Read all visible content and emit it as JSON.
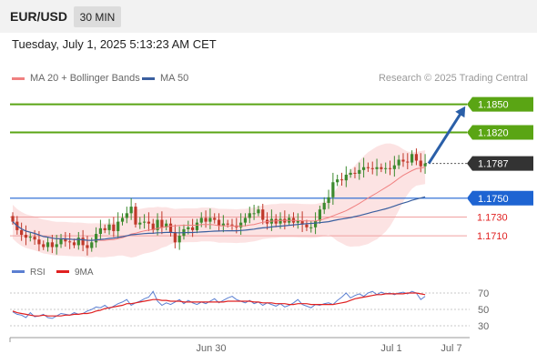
{
  "header": {
    "symbol": "EUR/USD",
    "timeframe": "30 MIN"
  },
  "datetime": "Tuesday, July 1, 2025 5:13:23 AM CET",
  "legend": {
    "ma20": {
      "label": "MA 20 + Bollinger Bands",
      "color": "#f08080"
    },
    "ma50": {
      "label": "MA 50",
      "color": "#3a5f9f"
    }
  },
  "credit": "Research © 2025 Trading Central",
  "rsi_legend": {
    "rsi": {
      "label": "RSI",
      "color": "#5b7fd1"
    },
    "ma9": {
      "label": "9MA",
      "color": "#e02020"
    }
  },
  "chart_data": {
    "type": "candlestick",
    "instrument": "EUR/USD",
    "timeframe": "30 MIN",
    "price_range": [
      1.1682,
      1.1868
    ],
    "levels": [
      {
        "value": 1.185,
        "label": "1.1850",
        "color": "#5aa514",
        "style": "target"
      },
      {
        "value": 1.182,
        "label": "1.1820",
        "color": "#5aa514",
        "style": "target"
      },
      {
        "value": 1.1787,
        "label": "1.1787",
        "color": "#333333",
        "style": "last-price"
      },
      {
        "value": 1.175,
        "label": "1.1750",
        "color": "#1e64d2",
        "style": "pivot"
      },
      {
        "value": 1.173,
        "label": "1.1730",
        "color": "#e02020",
        "style": "support"
      },
      {
        "value": 1.171,
        "label": "1.1710",
        "color": "#e02020",
        "style": "support"
      }
    ],
    "projection": {
      "from": 1.1787,
      "to": 1.1843,
      "direction": "up",
      "color": "#2a5fa8"
    },
    "x_ticks": [
      "Jun 30",
      "Jul 1",
      "Jul 7"
    ],
    "candles_close": [
      1.1725,
      1.1716,
      1.1711,
      1.1708,
      1.1709,
      1.1706,
      1.1701,
      1.1698,
      1.1703,
      1.1698,
      1.1701,
      1.1707,
      1.1704,
      1.1703,
      1.17,
      1.1708,
      1.17,
      1.1697,
      1.1703,
      1.1712,
      1.1718,
      1.1716,
      1.1722,
      1.1715,
      1.1725,
      1.1729,
      1.1734,
      1.1741,
      1.1722,
      1.1724,
      1.1725,
      1.1723,
      1.1716,
      1.1727,
      1.1719,
      1.1723,
      1.1714,
      1.1703,
      1.171,
      1.1717,
      1.1719,
      1.1716,
      1.1724,
      1.1729,
      1.1725,
      1.1729,
      1.1727,
      1.1721,
      1.1723,
      1.1722,
      1.1721,
      1.1719,
      1.1724,
      1.1729,
      1.1734,
      1.1734,
      1.1738,
      1.1727,
      1.1723,
      1.1728,
      1.1723,
      1.1728,
      1.1724,
      1.1729,
      1.1724,
      1.1726,
      1.1722,
      1.1719,
      1.1719,
      1.1726,
      1.1738,
      1.1745,
      1.1751,
      1.1767,
      1.177,
      1.1769,
      1.1775,
      1.1777,
      1.1776,
      1.178,
      1.1783,
      1.1782,
      1.1781,
      1.1783,
      1.1781,
      1.1782,
      1.1781,
      1.1785,
      1.1791,
      1.1789,
      1.1788,
      1.1797,
      1.179,
      1.1784,
      1.1787
    ],
    "rsi": {
      "range": [
        20,
        80
      ],
      "ticks": [
        70,
        50,
        30
      ],
      "rsi_values": [
        47,
        44,
        43,
        40,
        46,
        41,
        42,
        44,
        40,
        39,
        42,
        45,
        44,
        43,
        46,
        44,
        45,
        48,
        50,
        53,
        52,
        55,
        51,
        54,
        57,
        59,
        62,
        55,
        58,
        60,
        63,
        65,
        72,
        60,
        55,
        58,
        56,
        59,
        62,
        57,
        61,
        58,
        56,
        59,
        57,
        60,
        63,
        58,
        61,
        64,
        66,
        62,
        60,
        58,
        61,
        57,
        59,
        55,
        58,
        56,
        54,
        57,
        53,
        55,
        58,
        62,
        56,
        54,
        52,
        56,
        55,
        57,
        58,
        56,
        61,
        65,
        70,
        64,
        67,
        69,
        66,
        70,
        72,
        68,
        71,
        69,
        70,
        68,
        70,
        71,
        69,
        72,
        70,
        62,
        66
      ],
      "ma9_values": [
        48,
        46,
        45,
        44,
        43,
        42,
        42,
        43,
        42,
        42,
        42,
        42,
        43,
        43,
        44,
        44,
        45,
        45,
        46,
        48,
        49,
        51,
        52,
        53,
        54,
        55,
        57,
        57,
        58,
        59,
        60,
        61,
        62,
        62,
        61,
        61,
        60,
        60,
        60,
        59,
        59,
        59,
        59,
        59,
        59,
        59,
        59,
        59,
        59,
        60,
        60,
        60,
        60,
        60,
        60,
        59,
        59,
        58,
        58,
        58,
        57,
        57,
        57,
        56,
        56,
        57,
        57,
        57,
        56,
        56,
        56,
        56,
        56,
        56,
        57,
        58,
        59,
        61,
        63,
        64,
        65,
        66,
        67,
        68,
        68,
        69,
        69,
        69,
        69,
        69,
        70,
        70,
        70,
        69,
        68
      ]
    }
  }
}
